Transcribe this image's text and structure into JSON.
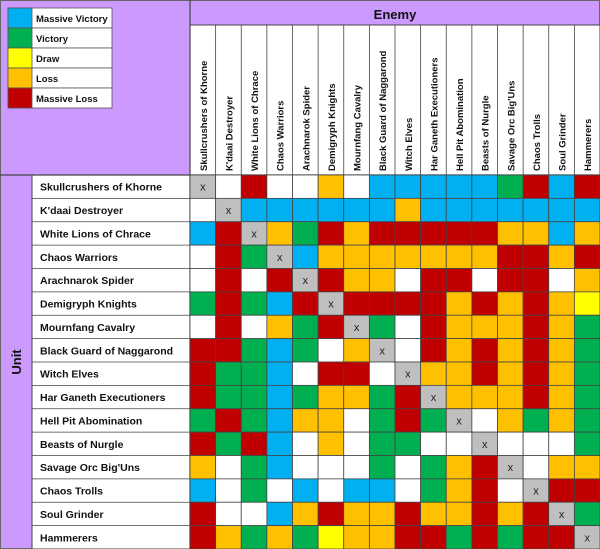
{
  "chart_data": {
    "type": "heatmap",
    "title": "Enemy",
    "row_axis_label": "Unit",
    "legend": [
      {
        "key": "MV",
        "label": "Massive Victory",
        "color": "#00b0f0"
      },
      {
        "key": "V",
        "label": "Victory",
        "color": "#00b050"
      },
      {
        "key": "D",
        "label": "Draw",
        "color": "#ffff00"
      },
      {
        "key": "L",
        "label": "Loss",
        "color": "#ffc000"
      },
      {
        "key": "ML",
        "label": "Massive Loss",
        "color": "#c00000"
      }
    ],
    "self_marker": "x",
    "columns": [
      "Skullcrushers of Khorne",
      "K'daai Destroyer",
      "White Lions of Chrace",
      "Chaos Warriors",
      "Arachnarok Spider",
      "Demigryph Knights",
      "Mournfang Cavalry",
      "Black Guard of Naggarond",
      "Witch Elves",
      "Har Ganeth Executioners",
      "Hell Pit Abomination",
      "Beasts of Nurgle",
      "Savage Orc Big'Uns",
      "Chaos Trolls",
      "Soul Grinder",
      "Hammerers"
    ],
    "rows": [
      "Skullcrushers of Khorne",
      "K'daai Destroyer",
      "White Lions of Chrace",
      "Chaos Warriors",
      "Arachnarok Spider",
      "Demigryph Knights",
      "Mournfang Cavalry",
      "Black Guard of Naggarond",
      "Witch Elves",
      "Har Ganeth Executioners",
      "Hell Pit Abomination",
      "Beasts of Nurgle",
      "Savage Orc Big'Uns",
      "Chaos Trolls",
      "Soul Grinder",
      "Hammerers"
    ],
    "cells": [
      [
        "X",
        "",
        "ML",
        "",
        "",
        "L",
        "",
        "MV",
        "MV",
        "MV",
        "MV",
        "MV",
        "V",
        "ML",
        "MV",
        "ML"
      ],
      [
        "",
        "X",
        "MV",
        "MV",
        "MV",
        "MV",
        "MV",
        "MV",
        "L",
        "MV",
        "MV",
        "MV",
        "MV",
        "MV",
        "MV",
        "MV"
      ],
      [
        "MV",
        "ML",
        "X",
        "L",
        "V",
        "ML",
        "L",
        "ML",
        "ML",
        "ML",
        "ML",
        "ML",
        "L",
        "L",
        "MV",
        "L"
      ],
      [
        "",
        "ML",
        "V",
        "X",
        "MV",
        "L",
        "L",
        "L",
        "L",
        "L",
        "L",
        "L",
        "ML",
        "ML",
        "L",
        "ML"
      ],
      [
        "",
        "ML",
        "",
        "ML",
        "X",
        "ML",
        "L",
        "L",
        "",
        "ML",
        "ML",
        "",
        "ML",
        "ML",
        "",
        "L"
      ],
      [
        "V",
        "ML",
        "V",
        "MV",
        "ML",
        "X",
        "ML",
        "ML",
        "ML",
        "ML",
        "L",
        "ML",
        "L",
        "ML",
        "L",
        "D"
      ],
      [
        "",
        "ML",
        "",
        "L",
        "V",
        "ML",
        "X",
        "V",
        "",
        "ML",
        "L",
        "L",
        "L",
        "ML",
        "L",
        "V"
      ],
      [
        "ML",
        "ML",
        "V",
        "MV",
        "V",
        "",
        "L",
        "X",
        "",
        "ML",
        "L",
        "ML",
        "L",
        "ML",
        "L",
        "V"
      ],
      [
        "ML",
        "V",
        "V",
        "MV",
        "",
        "ML",
        "ML",
        "",
        "X",
        "L",
        "L",
        "ML",
        "L",
        "ML",
        "L",
        "V"
      ],
      [
        "ML",
        "V",
        "V",
        "MV",
        "V",
        "L",
        "L",
        "V",
        "ML",
        "X",
        "L",
        "L",
        "L",
        "ML",
        "L",
        "V"
      ],
      [
        "V",
        "ML",
        "V",
        "MV",
        "L",
        "L",
        "",
        "V",
        "ML",
        "V",
        "X",
        "",
        "L",
        "V",
        "L",
        "V"
      ],
      [
        "ML",
        "V",
        "ML",
        "MV",
        "",
        "L",
        "",
        "V",
        "V",
        "",
        "",
        "X",
        "",
        "",
        "",
        "V"
      ],
      [
        "L",
        "",
        "V",
        "MV",
        "",
        "",
        "",
        "V",
        "",
        "V",
        "L",
        "ML",
        "X",
        "",
        "L",
        "L"
      ],
      [
        "MV",
        "",
        "V",
        "",
        "MV",
        "",
        "MV",
        "MV",
        "",
        "V",
        "L",
        "ML",
        "",
        "X",
        "ML",
        "ML"
      ],
      [
        "ML",
        "",
        "",
        "MV",
        "L",
        "ML",
        "L",
        "L",
        "ML",
        "L",
        "L",
        "ML",
        "L",
        "ML",
        "X",
        "V"
      ],
      [
        "ML",
        "L",
        "V",
        "L",
        "V",
        "D",
        "L",
        "L",
        "ML",
        "ML",
        "V",
        "ML",
        "V",
        "ML",
        "ML",
        "X"
      ]
    ]
  }
}
